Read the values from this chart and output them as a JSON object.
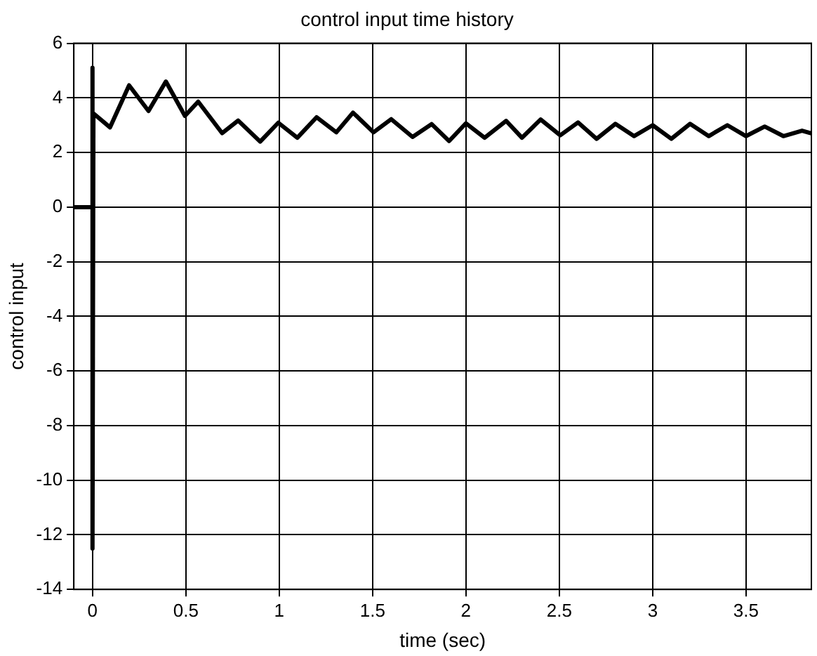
{
  "chart_data": {
    "type": "line",
    "title": "control input time history",
    "xlabel": "time (sec)",
    "ylabel": "control input",
    "xlim": [
      -0.1,
      3.85
    ],
    "xticks": [
      0,
      0.5,
      1,
      1.5,
      2,
      2.5,
      3,
      3.5
    ],
    "ylim": [
      -14,
      6
    ],
    "yticks": [
      -14,
      -12,
      -10,
      -8,
      -6,
      -4,
      -2,
      0,
      2,
      4,
      6
    ],
    "grid": true,
    "legend": false,
    "marker": "none",
    "line_style": "solid",
    "series": [
      {
        "color": "#000000",
        "x": [
          -0.1,
          0,
          0,
          0,
          0.005,
          0.094,
          0.196,
          0.3,
          0.393,
          0.495,
          0.566,
          0.694,
          0.78,
          0.898,
          0.995,
          1.097,
          1.2,
          1.306,
          1.395,
          1.505,
          1.6,
          1.714,
          1.816,
          1.91,
          2.0,
          2.1,
          2.215,
          2.3,
          2.4,
          2.505,
          2.6,
          2.7,
          2.8,
          2.9,
          3.0,
          3.1,
          3.2,
          3.3,
          3.4,
          3.5,
          3.6,
          3.7,
          3.8,
          3.85
        ],
        "values": [
          0,
          0,
          5.1,
          -12.5,
          3.43,
          2.92,
          4.46,
          3.52,
          4.6,
          3.34,
          3.86,
          2.71,
          3.17,
          2.4,
          3.09,
          2.54,
          3.29,
          2.74,
          3.46,
          2.74,
          3.22,
          2.57,
          3.04,
          2.42,
          3.07,
          2.54,
          3.16,
          2.54,
          3.21,
          2.63,
          3.1,
          2.5,
          3.05,
          2.6,
          3.0,
          2.5,
          3.05,
          2.6,
          3.0,
          2.6,
          2.95,
          2.6,
          2.8,
          2.7
        ]
      }
    ]
  }
}
